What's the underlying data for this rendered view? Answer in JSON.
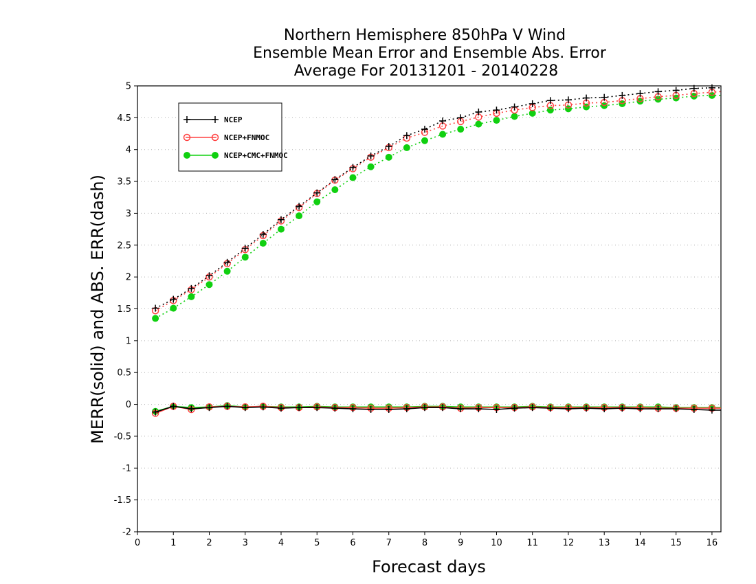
{
  "chart_data": {
    "type": "line",
    "title_lines": [
      "Northern Hemisphere 850hPa V Wind",
      "Ensemble Mean Error and Ensemble Abs. Error",
      "Average For 20131201 - 20140228"
    ],
    "xlabel": "Forecast days",
    "ylabel": "MERR(solid) and ABS. ERR(dash)",
    "xlim": [
      0,
      16.25
    ],
    "ylim": [
      -2,
      5
    ],
    "x_ticks": [
      "0",
      "1",
      "2",
      "3",
      "4",
      "5",
      "6",
      "7",
      "8",
      "9",
      "10",
      "11",
      "12",
      "13",
      "14",
      "15",
      "16"
    ],
    "y_ticks": [
      "-2",
      "-1.5",
      "-1",
      "-0.5",
      "0",
      "0.5",
      "1",
      "1.5",
      "2",
      "2.5",
      "3",
      "3.5",
      "4",
      "4.5",
      "5"
    ],
    "y_tick_values": [
      -2,
      -1.5,
      -1,
      -0.5,
      0,
      0.5,
      1,
      1.5,
      2,
      2.5,
      3,
      3.5,
      4,
      4.5,
      5
    ],
    "grid": true,
    "legend_position": "top-left",
    "x": [
      0.5,
      1,
      1.5,
      2,
      2.5,
      3,
      3.5,
      4,
      4.5,
      5,
      5.5,
      6,
      6.5,
      7,
      7.5,
      8,
      8.5,
      9,
      9.5,
      10,
      10.5,
      11,
      11.5,
      12,
      12.5,
      13,
      13.5,
      14,
      14.5,
      15,
      15.5,
      16,
      16.25
    ],
    "series": [
      {
        "name": "NCEP",
        "color": "#000000",
        "marker": "plus",
        "abs_err": [
          1.51,
          1.65,
          1.82,
          2.02,
          2.23,
          2.45,
          2.67,
          2.9,
          3.11,
          3.32,
          3.53,
          3.72,
          3.9,
          4.05,
          4.22,
          4.32,
          4.45,
          4.5,
          4.59,
          4.62,
          4.67,
          4.72,
          4.77,
          4.78,
          4.81,
          4.82,
          4.85,
          4.88,
          4.91,
          4.93,
          4.96,
          4.97,
          4.97
        ],
        "mean_err": [
          -0.12,
          -0.03,
          -0.07,
          -0.05,
          -0.03,
          -0.05,
          -0.04,
          -0.06,
          -0.05,
          -0.05,
          -0.06,
          -0.07,
          -0.08,
          -0.08,
          -0.07,
          -0.05,
          -0.05,
          -0.07,
          -0.07,
          -0.08,
          -0.06,
          -0.05,
          -0.06,
          -0.07,
          -0.06,
          -0.07,
          -0.06,
          -0.07,
          -0.07,
          -0.07,
          -0.08,
          -0.09,
          -0.09
        ]
      },
      {
        "name": "NCEP+FNMOC",
        "color": "#ff4040",
        "marker": "open-circle",
        "abs_err": [
          1.47,
          1.63,
          1.8,
          2.0,
          2.21,
          2.43,
          2.65,
          2.88,
          3.09,
          3.31,
          3.52,
          3.7,
          3.88,
          4.03,
          4.18,
          4.27,
          4.37,
          4.44,
          4.51,
          4.57,
          4.62,
          4.66,
          4.69,
          4.7,
          4.73,
          4.74,
          4.77,
          4.8,
          4.83,
          4.85,
          4.88,
          4.9,
          4.91
        ],
        "mean_err": [
          -0.14,
          -0.03,
          -0.08,
          -0.04,
          -0.03,
          -0.04,
          -0.03,
          -0.05,
          -0.05,
          -0.04,
          -0.05,
          -0.05,
          -0.06,
          -0.06,
          -0.05,
          -0.04,
          -0.04,
          -0.06,
          -0.05,
          -0.05,
          -0.05,
          -0.04,
          -0.05,
          -0.05,
          -0.05,
          -0.05,
          -0.05,
          -0.05,
          -0.06,
          -0.06,
          -0.06,
          -0.06,
          -0.06
        ]
      },
      {
        "name": "NCEP+CMC+FNMOC",
        "color": "#10d010",
        "marker": "filled-circle",
        "abs_err": [
          1.35,
          1.51,
          1.69,
          1.88,
          2.09,
          2.31,
          2.53,
          2.75,
          2.96,
          3.18,
          3.37,
          3.56,
          3.73,
          3.88,
          4.03,
          4.14,
          4.24,
          4.32,
          4.4,
          4.46,
          4.52,
          4.57,
          4.62,
          4.64,
          4.67,
          4.69,
          4.72,
          4.76,
          4.79,
          4.81,
          4.84,
          4.85,
          4.85
        ],
        "mean_err": [
          -0.11,
          -0.03,
          -0.05,
          -0.04,
          -0.02,
          -0.04,
          -0.03,
          -0.04,
          -0.04,
          -0.03,
          -0.04,
          -0.04,
          -0.04,
          -0.04,
          -0.04,
          -0.03,
          -0.03,
          -0.04,
          -0.04,
          -0.04,
          -0.04,
          -0.03,
          -0.04,
          -0.04,
          -0.04,
          -0.04,
          -0.04,
          -0.04,
          -0.04,
          -0.05,
          -0.05,
          -0.05,
          -0.05
        ]
      }
    ]
  }
}
